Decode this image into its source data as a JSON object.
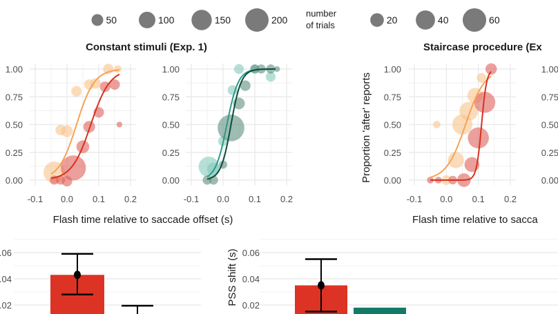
{
  "legends": {
    "constant": {
      "values": [
        50,
        100,
        150,
        200
      ],
      "labels": [
        "50",
        "100",
        "150",
        "200"
      ]
    },
    "title_line1": "number",
    "title_line2": "of trials",
    "staircase": {
      "values": [
        20,
        40,
        60
      ],
      "labels": [
        "20",
        "40",
        "60"
      ]
    }
  },
  "colors": {
    "early_light": "#f8c58c",
    "early_curve": "#f7a254",
    "late_red": "#e0605a",
    "late_curve": "#d7301f",
    "teal_light": "#86c9bd",
    "teal_curve": "#2b9a86",
    "teal_dark": "#5f8f80",
    "teal_dark_curve": "#0d4a3c",
    "bar_red": "#dc3324",
    "bar_teal": "#137a68"
  },
  "chart_data": [
    {
      "type": "scatter",
      "title": "Constant stimuli (Exp. 1)",
      "xlabel": "Flash time relative to saccade offset (s)",
      "xlim": [
        -0.1,
        0.2
      ],
      "ylim": [
        0,
        1
      ],
      "xticks": [
        "-0.1",
        "0.0",
        "0.1",
        "0.2"
      ],
      "yticks": [
        "0.00",
        "0.25",
        "0.50",
        "0.75",
        "1.00"
      ],
      "panels": [
        {
          "series": [
            {
              "color": "early_light",
              "curve": "early_curve",
              "fit": {
                "pss": 0.03,
                "slope": 0.028,
                "from": -0.05,
                "to": 0.165
              },
              "points": [
                [
                  -0.04,
                  0.07,
                  170
                ],
                [
                  -0.02,
                  0.45,
                  40
                ],
                [
                  0.0,
                  0.44,
                  50
                ],
                [
                  0.03,
                  0.8,
                  40
                ],
                [
                  0.07,
                  0.86,
                  40
                ],
                [
                  0.09,
                  0.87,
                  40
                ],
                [
                  0.13,
                  1.0,
                  40
                ],
                [
                  0.16,
                  1.0,
                  20
                ]
              ]
            },
            {
              "color": "late_red",
              "curve": "late_curve",
              "fit": {
                "pss": 0.075,
                "slope": 0.03,
                "from": -0.05,
                "to": 0.165
              },
              "points": [
                [
                  -0.04,
                  0.0,
                  30
                ],
                [
                  -0.02,
                  0.0,
                  30
                ],
                [
                  0.0,
                  -0.01,
                  40
                ],
                [
                  0.02,
                  0.11,
                  230
                ],
                [
                  0.05,
                  0.3,
                  60
                ],
                [
                  0.07,
                  0.48,
                  50
                ],
                [
                  0.1,
                  0.61,
                  40
                ],
                [
                  0.12,
                  0.84,
                  40
                ],
                [
                  0.15,
                  0.86,
                  40
                ],
                [
                  0.165,
                  0.5,
                  12
                ]
              ]
            }
          ]
        },
        {
          "series": [
            {
              "color": "teal_light",
              "curve": "teal_curve",
              "fit": {
                "pss": 0.012,
                "slope": 0.018,
                "from": -0.05,
                "to": 0.165
              },
              "points": [
                [
                  -0.045,
                  0.12,
                  150
                ],
                [
                  -0.03,
                  0.1,
                  60
                ],
                [
                  0.0,
                  0.35,
                  35
                ],
                [
                  0.03,
                  0.81,
                  35
                ],
                [
                  0.05,
                  1.0,
                  35
                ],
                [
                  0.1,
                  1.0,
                  30
                ],
                [
                  0.15,
                  0.93,
                  35
                ]
              ]
            },
            {
              "color": "teal_dark",
              "curve": "teal_dark_curve",
              "fit": {
                "pss": 0.025,
                "slope": 0.016,
                "from": -0.05,
                "to": 0.165
              },
              "points": [
                [
                  -0.05,
                  0.0,
                  30
                ],
                [
                  -0.03,
                  0.0,
                  30
                ],
                [
                  0.0,
                  0.14,
                  25
                ],
                [
                  0.025,
                  0.47,
                  260
                ],
                [
                  0.05,
                  0.69,
                  50
                ],
                [
                  0.07,
                  0.85,
                  40
                ],
                [
                  0.1,
                  1.0,
                  30
                ],
                [
                  0.12,
                  1.0,
                  30
                ],
                [
                  0.15,
                  1.0,
                  30
                ],
                [
                  0.17,
                  1.0,
                  12
                ]
              ]
            }
          ]
        }
      ]
    },
    {
      "type": "scatter",
      "title": "Staircase procedure (Ex",
      "xlabel": "Flash time relative to sacca",
      "ylabel": "Proportion 'after' reports",
      "xlim": [
        -0.1,
        0.2
      ],
      "ylim": [
        0,
        1
      ],
      "xticks": [
        "-0.1",
        "0.0",
        "0.1",
        "0.2"
      ],
      "yticks": [
        "0.00",
        "0.25",
        "0.50",
        "0.75",
        "1.00"
      ],
      "panels": [
        {
          "series": [
            {
              "color": "early_light",
              "curve": "early_curve",
              "fit": {
                "pss": 0.06,
                "slope": 0.03,
                "from": -0.05,
                "to": 0.14
              },
              "points": [
                [
                  -0.03,
                  0.5,
                  6
                ],
                [
                  0.0,
                  0.0,
                  10
                ],
                [
                  0.03,
                  0.18,
                  28
                ],
                [
                  0.05,
                  0.5,
                  44
                ],
                [
                  0.07,
                  0.62,
                  38
                ],
                [
                  0.09,
                  0.76,
                  26
                ],
                [
                  0.11,
                  0.92,
                  10
                ]
              ]
            },
            {
              "color": "late_red",
              "curve": "late_curve",
              "fit": {
                "pss": 0.11,
                "slope": 0.008,
                "from": -0.05,
                "to": 0.14
              },
              "points": [
                [
                  -0.05,
                  0.0,
                  5
                ],
                [
                  -0.025,
                  0.0,
                  5
                ],
                [
                  0.02,
                  0.0,
                  8
                ],
                [
                  0.055,
                  0.0,
                  20
                ],
                [
                  0.08,
                  0.14,
                  24
                ],
                [
                  0.1,
                  0.38,
                  48
                ],
                [
                  0.12,
                  0.7,
                  48
                ],
                [
                  0.14,
                  1.0,
                  14
                ]
              ]
            }
          ]
        }
      ]
    },
    {
      "type": "bar",
      "ylim": [
        0,
        0.07
      ],
      "yticks": [
        "0.02",
        "0.04",
        "0.06"
      ],
      "bars": [
        {
          "value": 0.043,
          "err_low": 0.028,
          "err_high": 0.059,
          "color": "bar_red"
        },
        {
          "value": null,
          "err_low": null,
          "err_high": 0.0195,
          "color": "bar_teal"
        }
      ]
    },
    {
      "type": "bar",
      "ylabel": "PSS shift (s)",
      "ylim": [
        0,
        0.07
      ],
      "yticks": [
        "0.02",
        "0.04",
        "0.06"
      ],
      "bars": [
        {
          "value": 0.035,
          "err_low": 0.015,
          "err_high": 0.055,
          "color": "bar_red"
        },
        {
          "value": 0.018,
          "color": "bar_teal"
        }
      ]
    }
  ]
}
